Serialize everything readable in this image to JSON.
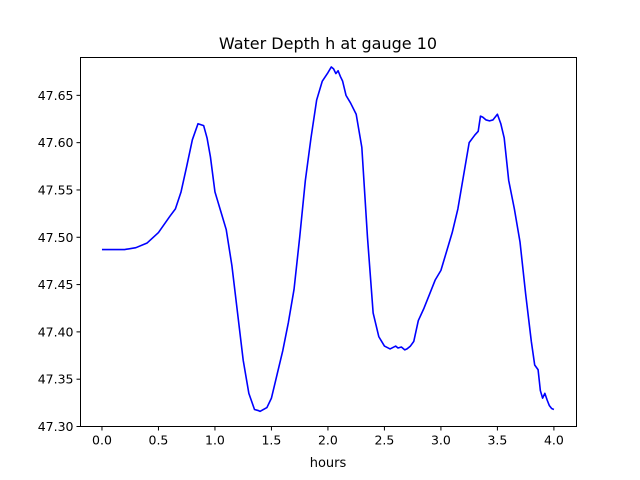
{
  "chart_data": {
    "type": "line",
    "title": "Water Depth h at gauge 10",
    "xlabel": "hours",
    "ylabel": "",
    "xlim": [
      -0.19,
      4.2
    ],
    "ylim": [
      47.3,
      47.69
    ],
    "xticks": [
      0.0,
      0.5,
      1.0,
      1.5,
      2.0,
      2.5,
      3.0,
      3.5,
      4.0
    ],
    "xtick_labels": [
      "0.0",
      "0.5",
      "1.0",
      "1.5",
      "2.0",
      "2.5",
      "3.0",
      "3.5",
      "4.0"
    ],
    "yticks": [
      47.3,
      47.35,
      47.4,
      47.45,
      47.5,
      47.55,
      47.6,
      47.65
    ],
    "ytick_labels": [
      "47.30",
      "47.35",
      "47.40",
      "47.45",
      "47.50",
      "47.55",
      "47.60",
      "47.65"
    ],
    "grid": false,
    "series": [
      {
        "color": "#0000ff",
        "x": [
          0.0,
          0.1,
          0.2,
          0.3,
          0.4,
          0.5,
          0.6,
          0.65,
          0.7,
          0.75,
          0.8,
          0.85,
          0.9,
          0.93,
          0.96,
          1.0,
          1.02,
          1.05,
          1.1,
          1.15,
          1.2,
          1.25,
          1.3,
          1.35,
          1.38,
          1.4,
          1.43,
          1.46,
          1.5,
          1.55,
          1.6,
          1.65,
          1.7,
          1.75,
          1.8,
          1.85,
          1.9,
          1.95,
          2.0,
          2.03,
          2.05,
          2.07,
          2.09,
          2.11,
          2.13,
          2.16,
          2.2,
          2.25,
          2.3,
          2.35,
          2.4,
          2.45,
          2.5,
          2.55,
          2.6,
          2.62,
          2.65,
          2.68,
          2.7,
          2.73,
          2.76,
          2.8,
          2.85,
          2.9,
          2.95,
          3.0,
          3.05,
          3.1,
          3.15,
          3.2,
          3.25,
          3.3,
          3.33,
          3.35,
          3.37,
          3.4,
          3.43,
          3.46,
          3.5,
          3.53,
          3.56,
          3.6,
          3.65,
          3.7,
          3.75,
          3.8,
          3.83,
          3.86,
          3.88,
          3.9,
          3.92,
          3.94,
          3.96,
          3.98,
          4.0
        ],
        "y": [
          47.487,
          47.487,
          47.487,
          47.489,
          47.494,
          47.505,
          47.522,
          47.53,
          47.548,
          47.575,
          47.603,
          47.62,
          47.618,
          47.605,
          47.585,
          47.548,
          47.54,
          47.528,
          47.508,
          47.47,
          47.42,
          47.37,
          47.335,
          47.318,
          47.317,
          47.316,
          47.318,
          47.32,
          47.33,
          47.355,
          47.38,
          47.41,
          47.445,
          47.5,
          47.56,
          47.605,
          47.645,
          47.665,
          47.674,
          47.68,
          47.678,
          47.673,
          47.676,
          47.67,
          47.665,
          47.65,
          47.642,
          47.63,
          47.595,
          47.5,
          47.42,
          47.395,
          47.385,
          47.382,
          47.385,
          47.383,
          47.384,
          47.381,
          47.382,
          47.385,
          47.39,
          47.412,
          47.425,
          47.44,
          47.455,
          47.465,
          47.485,
          47.505,
          47.53,
          47.565,
          47.6,
          47.608,
          47.612,
          47.628,
          47.627,
          47.624,
          47.623,
          47.624,
          47.63,
          47.62,
          47.605,
          47.56,
          47.53,
          47.495,
          47.44,
          47.39,
          47.365,
          47.36,
          47.338,
          47.33,
          47.335,
          47.328,
          47.322,
          47.319,
          47.318
        ]
      }
    ]
  }
}
